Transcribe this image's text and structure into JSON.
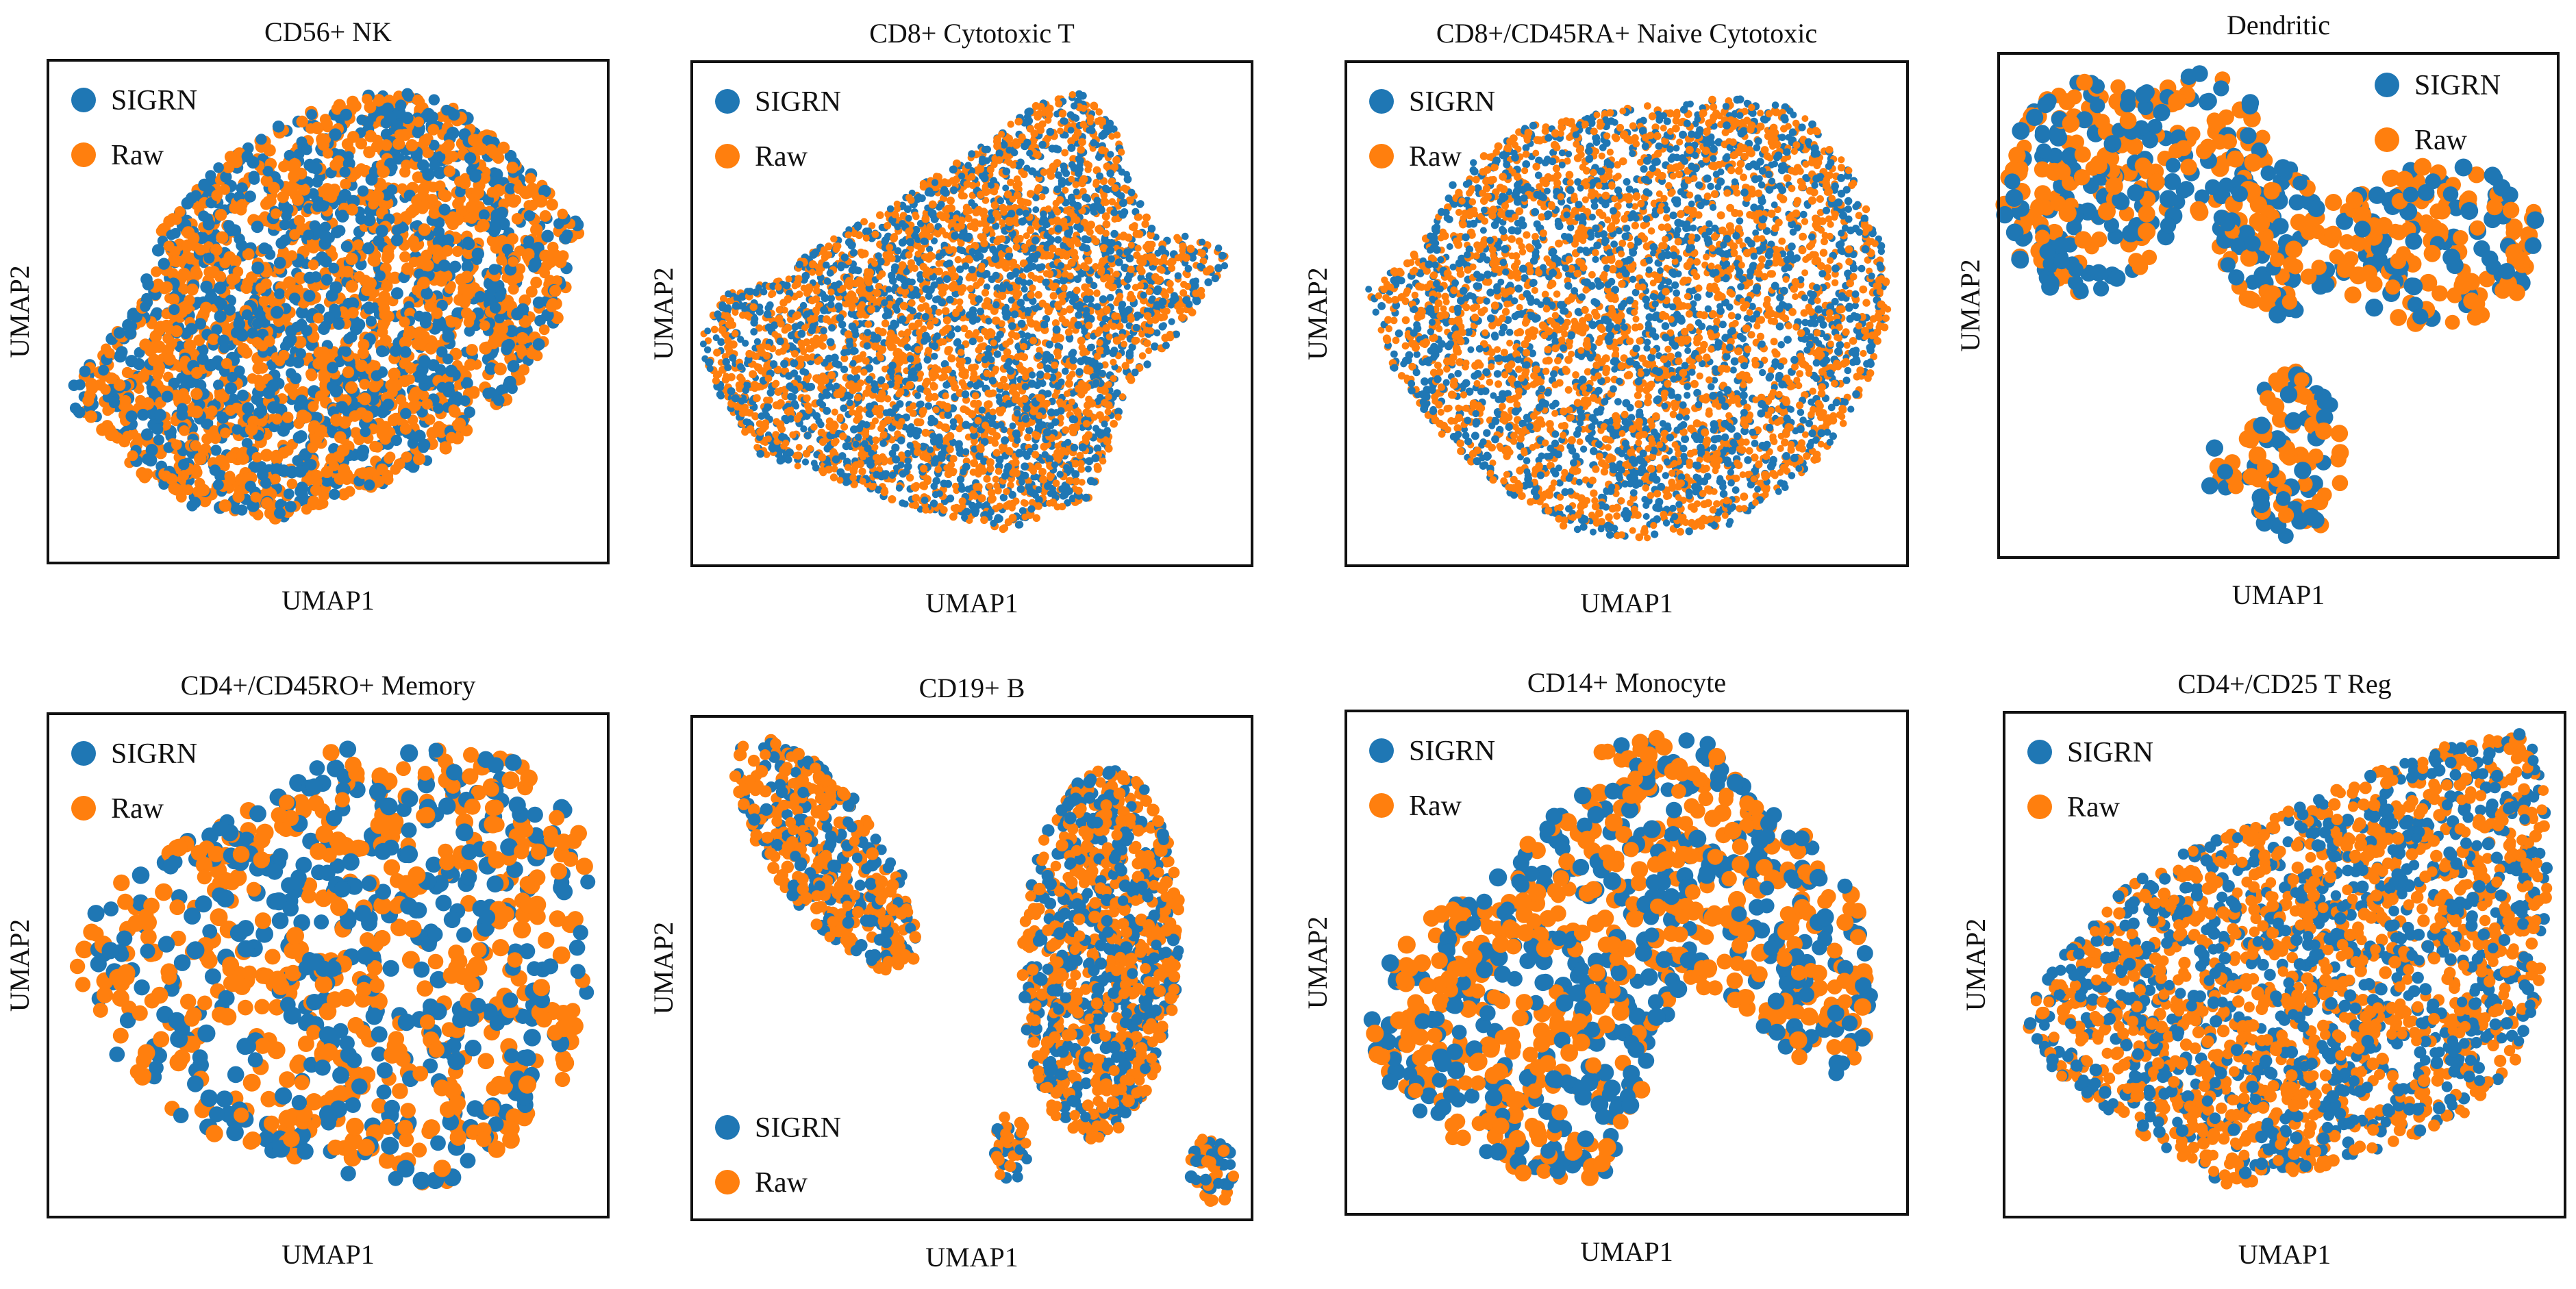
{
  "colors": {
    "sigrn": "#1f77b4",
    "raw": "#ff7f0e",
    "frame": "#111111"
  },
  "legend_labels": {
    "sigrn": "SIGRN",
    "raw": "Raw"
  },
  "chart_data": [
    {
      "type": "scatter",
      "title": "CD56+ NK",
      "xlabel": "UMAP1",
      "ylabel": "UMAP2",
      "legend_position": "top-left",
      "point_size": "medium",
      "series": [
        {
          "name": "SIGRN",
          "color": "#1f77b4"
        },
        {
          "name": "Raw",
          "color": "#ff7f0e"
        }
      ],
      "shape": {
        "kind": "lemon",
        "cells": 2600,
        "seed": 11
      }
    },
    {
      "type": "scatter",
      "title": "CD8+ Cytotoxic T",
      "xlabel": "UMAP1",
      "ylabel": "UMAP2",
      "legend_position": "top-left",
      "point_size": "small",
      "series": [
        {
          "name": "SIGRN",
          "color": "#1f77b4"
        },
        {
          "name": "Raw",
          "color": "#ff7f0e"
        }
      ],
      "shape": {
        "kind": "fan",
        "cells": 4200,
        "seed": 23
      }
    },
    {
      "type": "scatter",
      "title": "CD8+/CD45RA+ Naive Cytotoxic",
      "xlabel": "UMAP1",
      "ylabel": "UMAP2",
      "legend_position": "top-left",
      "point_size": "small",
      "series": [
        {
          "name": "SIGRN",
          "color": "#1f77b4"
        },
        {
          "name": "Raw",
          "color": "#ff7f0e"
        }
      ],
      "shape": {
        "kind": "blob",
        "cells": 4200,
        "seed": 37
      }
    },
    {
      "type": "scatter",
      "title": "Dendritic",
      "xlabel": "UMAP1",
      "ylabel": "UMAP2",
      "legend_position": "top-right",
      "point_size": "large",
      "series": [
        {
          "name": "SIGRN",
          "color": "#1f77b4"
        },
        {
          "name": "Raw",
          "color": "#ff7f0e"
        }
      ],
      "shape": {
        "kind": "clusters",
        "cells": 720,
        "seed": 41
      }
    },
    {
      "type": "scatter",
      "title": "CD4+/CD45RO+ Memory",
      "xlabel": "UMAP1",
      "ylabel": "UMAP2",
      "legend_position": "top-left",
      "point_size": "large",
      "series": [
        {
          "name": "SIGRN",
          "color": "#1f77b4"
        },
        {
          "name": "Raw",
          "color": "#ff7f0e"
        }
      ],
      "shape": {
        "kind": "round",
        "cells": 900,
        "seed": 53
      }
    },
    {
      "type": "scatter",
      "title": "CD19+ B",
      "xlabel": "UMAP1",
      "ylabel": "UMAP2",
      "legend_position": "bottom-left",
      "point_size": "medium",
      "series": [
        {
          "name": "SIGRN",
          "color": "#1f77b4"
        },
        {
          "name": "Raw",
          "color": "#ff7f0e"
        }
      ],
      "shape": {
        "kind": "twoclusters",
        "cells": 1500,
        "seed": 67
      }
    },
    {
      "type": "scatter",
      "title": "CD14+ Monocyte",
      "xlabel": "UMAP1",
      "ylabel": "UMAP2",
      "legend_position": "top-left",
      "point_size": "large",
      "series": [
        {
          "name": "SIGRN",
          "color": "#1f77b4"
        },
        {
          "name": "Raw",
          "color": "#ff7f0e"
        }
      ],
      "shape": {
        "kind": "horseshoe",
        "cells": 900,
        "seed": 79
      }
    },
    {
      "type": "scatter",
      "title": "CD4+/CD25 T Reg",
      "xlabel": "UMAP1",
      "ylabel": "UMAP2",
      "legend_position": "top-left",
      "point_size": "medium",
      "series": [
        {
          "name": "SIGRN",
          "color": "#1f77b4"
        },
        {
          "name": "Raw",
          "color": "#ff7f0e"
        }
      ],
      "shape": {
        "kind": "wedge",
        "cells": 2200,
        "seed": 97
      }
    }
  ]
}
